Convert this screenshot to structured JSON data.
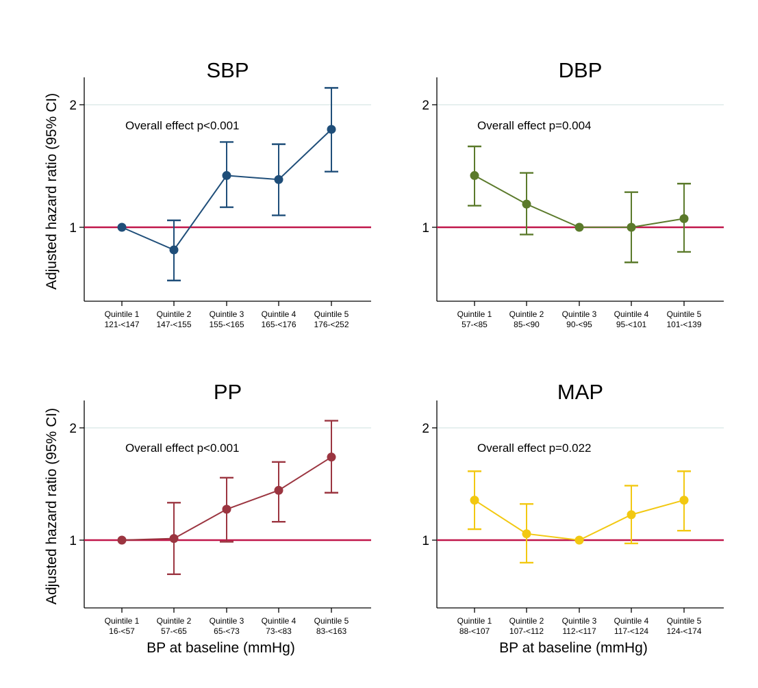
{
  "chart_data": [
    {
      "type": "line",
      "title": "SBP",
      "annotation": "Overall effect p<0.001",
      "color": "#1f4e79",
      "ylabel": "Adjusted hazard ratio (95% CI)",
      "xlabel": "",
      "yscale": "log",
      "ylim": [
        0.55,
        2.25
      ],
      "yticks": [
        "1",
        "2"
      ],
      "reference_line": {
        "y": 1,
        "color": "#c0174a"
      },
      "categories": [
        {
          "line1": "Quintile 1",
          "line2": "121-<147"
        },
        {
          "line1": "Quintile 2",
          "line2": "147-<155"
        },
        {
          "line1": "Quintile 3",
          "line2": "155-<165"
        },
        {
          "line1": "Quintile 4",
          "line2": "165-<176"
        },
        {
          "line1": "Quintile 5",
          "line2": "176-<252"
        }
      ],
      "points": [
        {
          "hr": 1.0,
          "lo": null,
          "hi": null
        },
        {
          "hr": 0.88,
          "lo": 0.74,
          "hi": 1.04
        },
        {
          "hr": 1.34,
          "lo": 1.12,
          "hi": 1.62
        },
        {
          "hr": 1.31,
          "lo": 1.07,
          "hi": 1.6
        },
        {
          "hr": 1.74,
          "lo": 1.37,
          "hi": 2.2
        }
      ]
    },
    {
      "type": "line",
      "title": "DBP",
      "annotation": "Overall effect p=0.004",
      "color": "#5b7a2b",
      "ylabel": "",
      "xlabel": "",
      "yscale": "log",
      "ylim": [
        0.55,
        2.25
      ],
      "yticks": [
        "1",
        "2"
      ],
      "reference_line": {
        "y": 1,
        "color": "#c0174a"
      },
      "categories": [
        {
          "line1": "Quintile 1",
          "line2": "57-<85"
        },
        {
          "line1": "Quintile 2",
          "line2": "85-<90"
        },
        {
          "line1": "Quintile 3",
          "line2": "90-<95"
        },
        {
          "line1": "Quintile 4",
          "line2": "95-<101"
        },
        {
          "line1": "Quintile 5",
          "line2": "101-<139"
        }
      ],
      "points": [
        {
          "hr": 1.34,
          "lo": 1.13,
          "hi": 1.58
        },
        {
          "hr": 1.14,
          "lo": 0.96,
          "hi": 1.36
        },
        {
          "hr": 1.0,
          "lo": null,
          "hi": null
        },
        {
          "hr": 1.0,
          "lo": 0.82,
          "hi": 1.22
        },
        {
          "hr": 1.05,
          "lo": 0.87,
          "hi": 1.28
        }
      ]
    },
    {
      "type": "line",
      "title": "PP",
      "annotation": "Overall effect p<0.001",
      "color": "#9b3540",
      "ylabel": "Adjusted hazard ratio (95% CI)",
      "xlabel": "BP at baseline (mmHg)",
      "yscale": "log",
      "ylim": [
        0.55,
        2.25
      ],
      "yticks": [
        "1",
        "2"
      ],
      "reference_line": {
        "y": 1,
        "color": "#c0174a"
      },
      "categories": [
        {
          "line1": "Quintile 1",
          "line2": "16-<57"
        },
        {
          "line1": "Quintile 2",
          "line2": "57-<65"
        },
        {
          "line1": "Quintile 3",
          "line2": "65-<73"
        },
        {
          "line1": "Quintile 4",
          "line2": "73-<83"
        },
        {
          "line1": "Quintile 5",
          "line2": "83-<163"
        }
      ],
      "points": [
        {
          "hr": 1.0,
          "lo": null,
          "hi": null
        },
        {
          "hr": 1.01,
          "lo": 0.81,
          "hi": 1.26
        },
        {
          "hr": 1.21,
          "lo": 0.99,
          "hi": 1.47
        },
        {
          "hr": 1.36,
          "lo": 1.12,
          "hi": 1.62
        },
        {
          "hr": 1.67,
          "lo": 1.34,
          "hi": 2.09
        }
      ]
    },
    {
      "type": "line",
      "title": "MAP",
      "annotation": "Overall effect p=0.022",
      "color": "#f2c811",
      "ylabel": "",
      "xlabel": "BP at baseline (mmHg)",
      "yscale": "log",
      "ylim": [
        0.55,
        2.25
      ],
      "yticks": [
        "1",
        "2"
      ],
      "reference_line": {
        "y": 1,
        "color": "#c0174a"
      },
      "categories": [
        {
          "line1": "Quintile 1",
          "line2": "88-<107"
        },
        {
          "line1": "Quintile 2",
          "line2": "107-<112"
        },
        {
          "line1": "Quintile 3",
          "line2": "112-<117"
        },
        {
          "line1": "Quintile 4",
          "line2": "117-<124"
        },
        {
          "line1": "Quintile 5",
          "line2": "124-<174"
        }
      ],
      "points": [
        {
          "hr": 1.28,
          "lo": 1.07,
          "hi": 1.53
        },
        {
          "hr": 1.04,
          "lo": 0.87,
          "hi": 1.25
        },
        {
          "hr": 1.0,
          "lo": null,
          "hi": null
        },
        {
          "hr": 1.17,
          "lo": 0.98,
          "hi": 1.4
        },
        {
          "hr": 1.28,
          "lo": 1.06,
          "hi": 1.53
        }
      ]
    }
  ]
}
